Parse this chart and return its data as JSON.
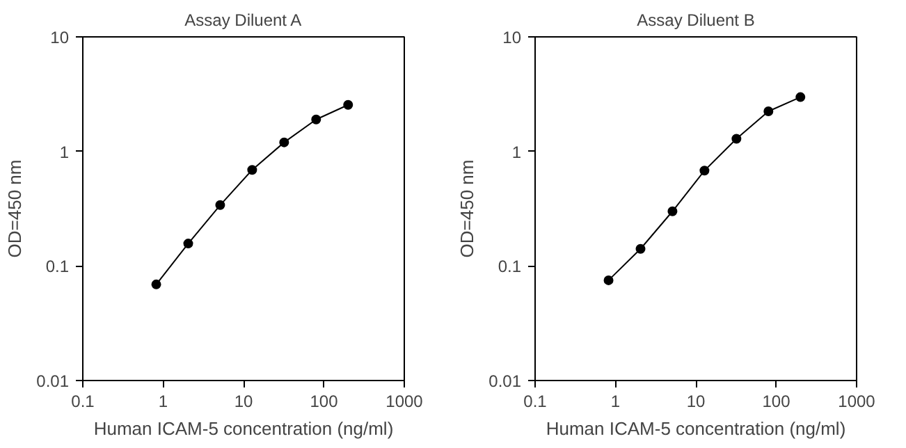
{
  "chart_data": [
    {
      "type": "line",
      "title": "Assay Diluent A",
      "xlabel": "Human ICAM-5 concentration (ng/ml)",
      "ylabel": "OD=450 nm",
      "log": "xy",
      "xlim": [
        0.1,
        1000
      ],
      "ylim": [
        0.01,
        10
      ],
      "xticks": [
        0.1,
        1,
        10,
        100,
        1000
      ],
      "yticks": [
        0.01,
        0.1,
        1,
        10
      ],
      "grid": false,
      "marker": "circle",
      "line_style": "solid",
      "x": [
        0.82,
        2.05,
        5.12,
        12.8,
        32,
        80,
        200
      ],
      "series": [
        {
          "color": "#000000",
          "values": [
            0.069,
            0.157,
            0.34,
            0.69,
            1.2,
            1.9,
            2.55
          ]
        }
      ]
    },
    {
      "type": "line",
      "title": "Assay Diluent B",
      "xlabel": "Human ICAM-5 concentration (ng/ml)",
      "ylabel": "OD=450 nm",
      "log": "xy",
      "xlim": [
        0.1,
        1000
      ],
      "ylim": [
        0.01,
        10
      ],
      "xticks": [
        0.1,
        1,
        10,
        100,
        1000
      ],
      "yticks": [
        0.01,
        0.1,
        1,
        10
      ],
      "grid": false,
      "marker": "circle",
      "line_style": "solid",
      "x": [
        0.82,
        2.05,
        5.12,
        12.8,
        32,
        80,
        200
      ],
      "series": [
        {
          "color": "#000000",
          "values": [
            0.075,
            0.141,
            0.3,
            0.68,
            1.29,
            2.24,
            2.98
          ]
        }
      ]
    }
  ]
}
